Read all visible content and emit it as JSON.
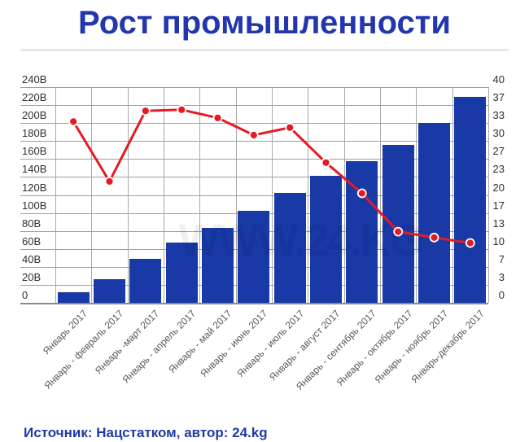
{
  "title": "Рост промышленности",
  "watermark": "WWW.24.KG",
  "footer": {
    "text": "Источник: Нацстатком, автор: 24.kg"
  },
  "colors": {
    "bar": "#1839a6",
    "line": "#e41b23",
    "marker_ring": "#ffffff",
    "title_text": "#2336ae",
    "footer_text": "#2039a8",
    "grid": "#9e9e9e",
    "axis_text": "#2f2f2f",
    "x_label_text": "#595959",
    "divider": "#e8e8e8"
  },
  "chart_data": {
    "type": "bar",
    "subtype": "bar+line dual axis",
    "title": "Рост промышленности",
    "grid": true,
    "legend": false,
    "categories": [
      "Январь 2017",
      "Январь - февраль 2017",
      "Январь -март 2017",
      "Январь - апрель 2017",
      "Январь - май 2017",
      "Январь - июнь 2017",
      "Январь - июль 2017",
      "Январь - август 2017",
      "Январь - сентябрь 2017",
      "Январь - октябрь 2017",
      "Январь - ноябрь 2017",
      "Январь-декабрь 2017"
    ],
    "series": [
      {
        "type": "bar",
        "axis": "left",
        "values": [
          12,
          26,
          49,
          67,
          83,
          102,
          122,
          141,
          158,
          176,
          200,
          229
        ]
      },
      {
        "type": "line",
        "axis": "right",
        "values": [
          33.6,
          22.5,
          35.6,
          35.8,
          34.3,
          31.1,
          32.5,
          26.0,
          20.3,
          13.2,
          12.1,
          11.1
        ]
      }
    ],
    "left_axis": {
      "max": 240,
      "ticks": [
        "240B",
        "220B",
        "200B",
        "180B",
        "160B",
        "140B",
        "120B",
        "100B",
        "80B",
        "60B",
        "40B",
        "20B",
        "0"
      ]
    },
    "right_axis": {
      "max": 40,
      "ticks": [
        "40",
        "37",
        "33",
        "30",
        "27",
        "23",
        "20",
        "17",
        "13",
        "10",
        "7",
        "3",
        "0"
      ]
    }
  }
}
